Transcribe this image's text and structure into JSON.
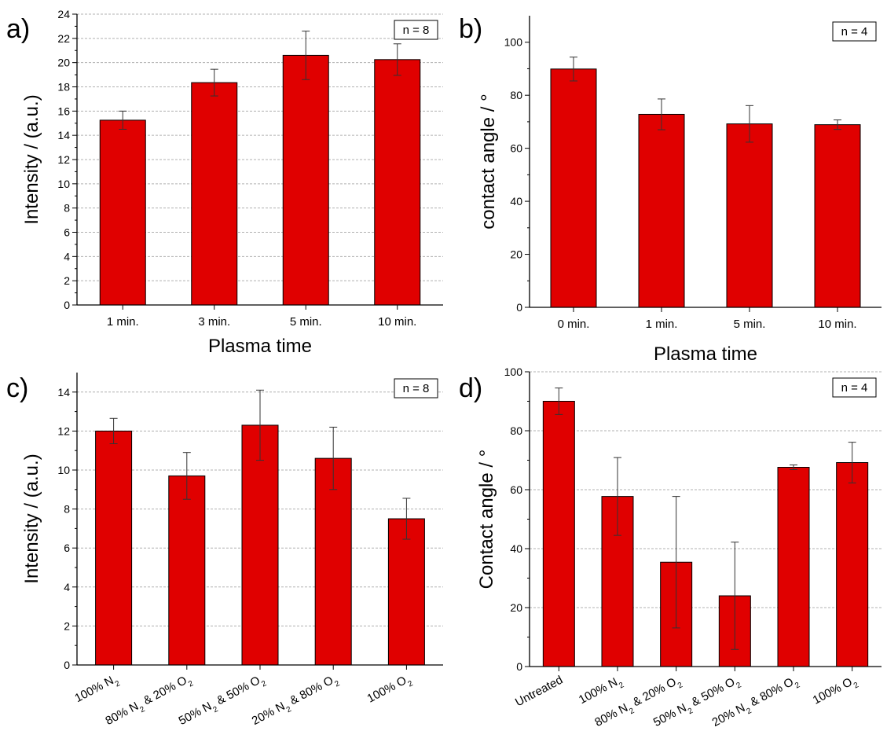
{
  "colors": {
    "bar": "#e00000",
    "bar_edge": "#000000",
    "grid": "#b0b0b0",
    "axis": "#000000"
  },
  "chart_data": [
    {
      "panel": "a)",
      "type": "bar",
      "note": "n = 8",
      "xlabel": "Plasma time",
      "ylabel": "Intensity / (a.u.)",
      "ylim": [
        0,
        24
      ],
      "yticks": [
        0,
        2,
        4,
        6,
        8,
        10,
        12,
        14,
        16,
        18,
        20,
        22,
        24
      ],
      "grid": true,
      "categories": [
        "1 min.",
        "3 min.",
        "5 min.",
        "10 min."
      ],
      "values": [
        15.25,
        18.35,
        20.6,
        20.25
      ],
      "errors": [
        0.75,
        1.1,
        2.0,
        1.3
      ]
    },
    {
      "panel": "b)",
      "type": "bar",
      "note": "n = 4",
      "xlabel": "Plasma time",
      "ylabel": "contact angle / °",
      "ylim": [
        0,
        110
      ],
      "yticks": [
        0,
        20,
        40,
        60,
        80,
        100
      ],
      "grid": false,
      "categories": [
        "0 min.",
        "1 min.",
        "5 min.",
        "10 min."
      ],
      "values": [
        89.9,
        72.8,
        69.2,
        68.9
      ],
      "errors": [
        4.5,
        5.8,
        6.9,
        1.8
      ]
    },
    {
      "panel": "c)",
      "type": "bar",
      "note": "n = 8",
      "xlabel": "",
      "ylabel": "Intensity / (a.u.)",
      "ylim": [
        0,
        15
      ],
      "yticks": [
        0,
        2,
        4,
        6,
        8,
        10,
        12,
        14
      ],
      "grid": true,
      "categories": [
        [
          [
            "100% N",
            ""
          ],
          [
            "2",
            "sub"
          ]
        ],
        [
          [
            "80% N",
            ""
          ],
          [
            "2",
            "sub"
          ],
          [
            " & 20% O",
            ""
          ],
          [
            "2",
            "sub"
          ]
        ],
        [
          [
            "50% N",
            ""
          ],
          [
            "2",
            "sub"
          ],
          [
            " & 50% O",
            ""
          ],
          [
            "2",
            "sub"
          ]
        ],
        [
          [
            "20% N",
            ""
          ],
          [
            "2",
            "sub"
          ],
          [
            " & 80% O",
            ""
          ],
          [
            "2",
            "sub"
          ]
        ],
        [
          [
            "100% O",
            ""
          ],
          [
            "2",
            "sub"
          ]
        ]
      ],
      "values": [
        12.0,
        9.7,
        12.3,
        10.6,
        7.5
      ],
      "errors": [
        0.65,
        1.2,
        1.8,
        1.6,
        1.05
      ]
    },
    {
      "panel": "d)",
      "type": "bar",
      "note": "n = 4",
      "xlabel": "",
      "ylabel": "Contact angle / °",
      "ylim": [
        0,
        100
      ],
      "yticks": [
        0,
        20,
        40,
        60,
        80,
        100
      ],
      "grid": true,
      "categories": [
        [
          [
            "Untreated",
            ""
          ]
        ],
        [
          [
            "100% N",
            ""
          ],
          [
            "2",
            "sub"
          ]
        ],
        [
          [
            "80% N",
            ""
          ],
          [
            "2",
            "sub"
          ],
          [
            " & 20% O",
            ""
          ],
          [
            "2",
            "sub"
          ]
        ],
        [
          [
            "50% N",
            ""
          ],
          [
            "2",
            "sub"
          ],
          [
            " & 50% O",
            ""
          ],
          [
            "2",
            "sub"
          ]
        ],
        [
          [
            "20% N",
            ""
          ],
          [
            "2",
            "sub"
          ],
          [
            " & 80% O",
            ""
          ],
          [
            "2",
            "sub"
          ]
        ],
        [
          [
            "100% O",
            ""
          ],
          [
            "2",
            "sub"
          ]
        ]
      ],
      "values": [
        90.0,
        57.7,
        35.4,
        24.0,
        67.6,
        69.2
      ],
      "errors": [
        4.5,
        13.2,
        22.3,
        18.2,
        0.8,
        6.9
      ]
    }
  ]
}
